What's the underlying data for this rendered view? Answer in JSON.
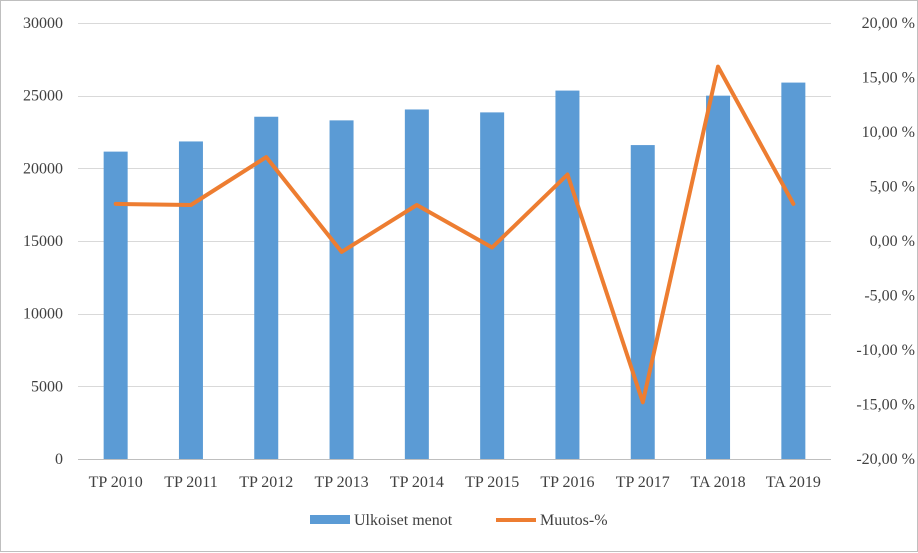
{
  "chart_data": {
    "type": "bar",
    "categories": [
      "TP 2010",
      "TP 2011",
      "TP 2012",
      "TP 2013",
      "TP 2014",
      "TP 2015",
      "TP 2016",
      "TP 2017",
      "TA 2018",
      "TA 2019"
    ],
    "series": [
      {
        "name": "Ulkoiset menot",
        "type": "bar",
        "axis": "left",
        "color": "#5b9bd5",
        "values": [
          21150,
          21850,
          23550,
          23300,
          24050,
          23850,
          25350,
          21600,
          25000,
          25900
        ]
      },
      {
        "name": "Muutos-%",
        "type": "line",
        "axis": "right",
        "color": "#ed7d31",
        "values": [
          3.4,
          3.3,
          7.7,
          -1.0,
          3.3,
          -0.6,
          6.1,
          -14.8,
          16.0,
          3.4
        ]
      }
    ],
    "y_left": {
      "lim": [
        0,
        30000
      ],
      "ticks": [
        0,
        5000,
        10000,
        15000,
        20000,
        25000,
        30000
      ],
      "tick_labels": [
        "0",
        "5000",
        "10000",
        "15000",
        "20000",
        "25000",
        "30000"
      ]
    },
    "y_right": {
      "lim": [
        -20,
        20
      ],
      "ticks": [
        -20,
        -15,
        -10,
        -5,
        0,
        5,
        10,
        15,
        20
      ],
      "tick_labels": [
        "-20,00 %",
        "-15,00 %",
        "-10,00 %",
        "-5,00 %",
        "0,00 %",
        "5,00 %",
        "10,00 %",
        "15,00 %",
        "20,00 %"
      ]
    },
    "grid": true,
    "legend": "bottom"
  }
}
